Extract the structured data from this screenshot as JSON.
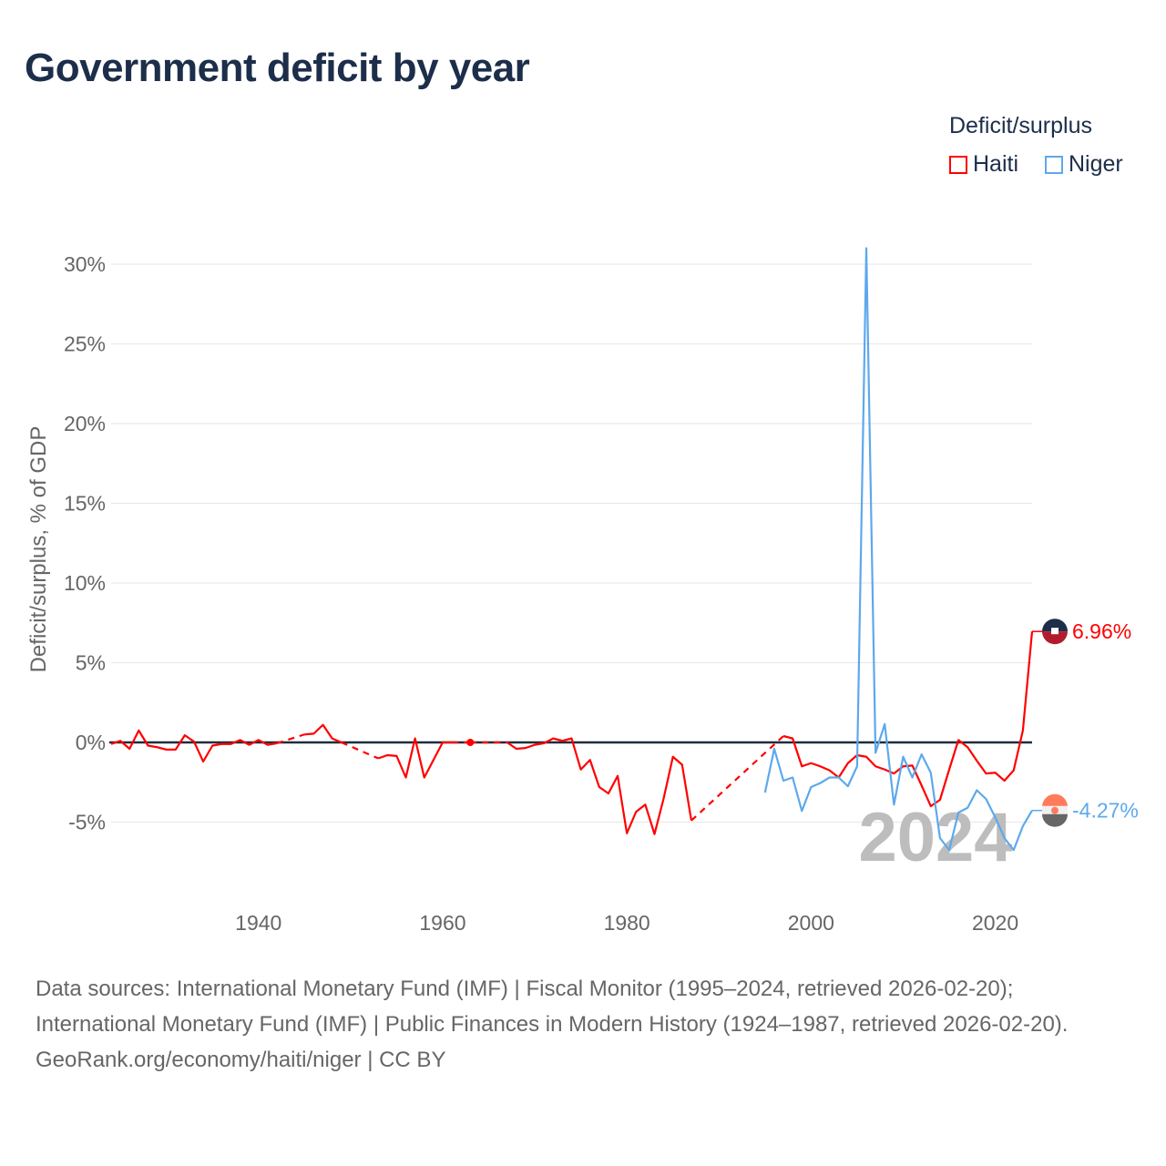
{
  "title": "Government deficit by year",
  "legend": {
    "title": "Deficit/surplus",
    "items": [
      "Haiti",
      "Niger"
    ]
  },
  "footer": {
    "sources": "Data sources: International Monetary Fund (IMF) | Fiscal Monitor (1995–2024, retrieved 2026-02-20); International Monetary Fund (IMF) | Public Finances in Modern History (1924–1987, retrieved 2026-02-20).",
    "credit": "GeoRank.org/economy/haiti/niger | CC BY"
  },
  "chart_data": {
    "type": "line",
    "title": "Government deficit by year",
    "xlabel": "",
    "ylabel": "Deficit/surplus, % of GDP",
    "xlim": [
      1924,
      2024
    ],
    "ylim": [
      -8,
      31
    ],
    "xticks": [
      1940,
      1960,
      1980,
      2000,
      2020
    ],
    "yticks": [
      -5,
      0,
      5,
      10,
      15,
      20,
      25,
      30
    ],
    "ytick_labels": [
      "-5%",
      "0%",
      "5%",
      "10%",
      "15%",
      "20%",
      "25%",
      "30%"
    ],
    "current_year_label": "2024",
    "grid": true,
    "legend_position": "top-right",
    "x_start": 1924,
    "series": [
      {
        "name": "Haiti",
        "color": "#ff0000",
        "end_label": "6.96%",
        "values": [
          -0.1,
          0.1,
          -0.4,
          0.75,
          -0.2,
          -0.3,
          -0.45,
          -0.45,
          0.45,
          0.05,
          -1.2,
          -0.2,
          -0.1,
          -0.1,
          0.15,
          -0.15,
          0.15,
          -0.15,
          -0.05,
          null,
          null,
          0.5,
          0.55,
          1.1,
          0.25,
          0.0,
          null,
          null,
          null,
          -1.0,
          -0.8,
          -0.85,
          -2.2,
          0.25,
          -2.2,
          -1.1,
          0.0,
          0.0,
          null,
          0.0,
          null,
          null,
          null,
          0.0,
          -0.4,
          -0.35,
          -0.15,
          -0.05,
          0.25,
          0.1,
          0.25,
          -1.7,
          -1.1,
          -2.8,
          -3.2,
          -2.1,
          -5.7,
          -4.35,
          -3.9,
          -5.75,
          -3.5,
          -0.9,
          -1.4,
          -4.9,
          null,
          null,
          null,
          null,
          null,
          null,
          null,
          null,
          null,
          0.4,
          0.25,
          -1.5,
          -1.3,
          -1.5,
          -1.75,
          -2.2,
          -1.3,
          -0.8,
          -0.9,
          -1.5,
          -1.7,
          -1.95,
          -1.5,
          -1.45,
          -2.7,
          -4.0,
          -3.6,
          -1.7,
          0.15,
          -0.3,
          -1.15,
          -1.95,
          -1.9,
          -2.4,
          -1.75,
          0.75,
          6.96
        ]
      },
      {
        "name": "Niger",
        "color": "#5ea8ec",
        "end_label": "-4.27%",
        "values": [
          null,
          null,
          null,
          null,
          null,
          null,
          null,
          null,
          null,
          null,
          null,
          null,
          null,
          null,
          null,
          null,
          null,
          null,
          null,
          null,
          null,
          null,
          null,
          null,
          null,
          null,
          null,
          null,
          null,
          null,
          null,
          null,
          null,
          null,
          null,
          null,
          null,
          null,
          null,
          null,
          null,
          null,
          null,
          null,
          null,
          null,
          null,
          null,
          null,
          null,
          null,
          null,
          null,
          null,
          null,
          null,
          null,
          null,
          null,
          null,
          null,
          null,
          null,
          null,
          null,
          null,
          null,
          null,
          null,
          null,
          null,
          -3.15,
          -0.4,
          -2.4,
          -2.2,
          -4.3,
          -2.8,
          -2.55,
          -2.2,
          -2.2,
          -2.75,
          -1.5,
          31.0,
          -0.65,
          1.15,
          -3.9,
          -0.9,
          -2.2,
          -0.75,
          -1.9,
          -6.0,
          -6.75,
          -4.4,
          -4.1,
          -3.0,
          -3.55,
          -4.7,
          -6.0,
          -6.75,
          -5.25,
          -4.27
        ]
      }
    ]
  }
}
